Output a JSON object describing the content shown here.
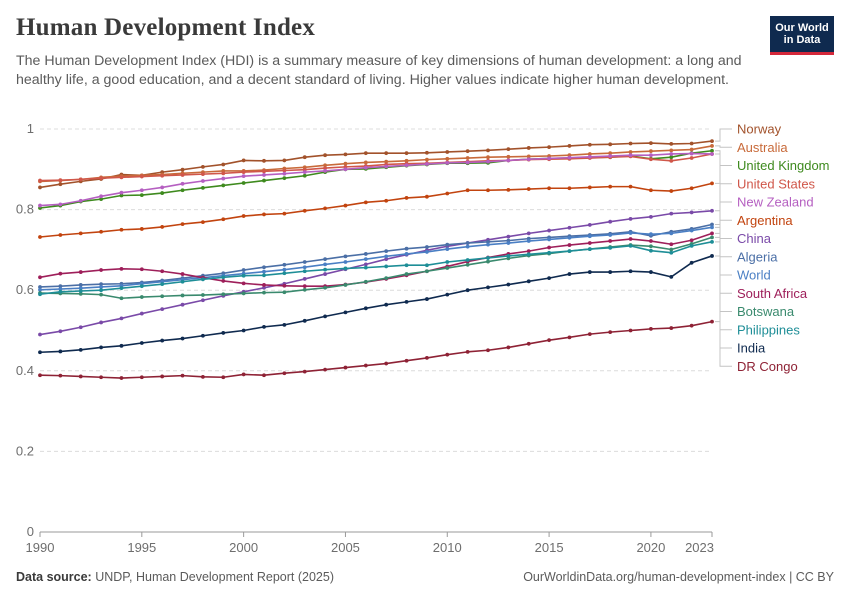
{
  "header": {
    "title": "Human Development Index",
    "subtitle": "The Human Development Index (HDI) is a summary measure of key dimensions of human development: a long and healthy life, a good education, and a decent standard of living. Higher values indicate higher human development."
  },
  "logo": {
    "line1": "Our World",
    "line2": "in Data",
    "bg_color": "#0f2a4f",
    "accent_color": "#d4283a"
  },
  "footer": {
    "source_label": "Data source:",
    "source_text": " UNDP, Human Development Report (2025)",
    "url_license": "OurWorldinData.org/human-development-index | CC BY"
  },
  "chart_data": {
    "type": "line",
    "title": "Human Development Index",
    "x_ticks": [
      "1990",
      "1995",
      "2000",
      "2005",
      "2010",
      "2015",
      "2020",
      "2023"
    ],
    "y_ticks": [
      "0",
      "0.2",
      "0.4",
      "0.6",
      "0.8",
      "1"
    ],
    "xlim": [
      1990,
      2023
    ],
    "ylim": [
      0,
      1
    ],
    "grid": true,
    "legend": "right",
    "x": [
      1990,
      1991,
      1992,
      1993,
      1994,
      1995,
      1996,
      1997,
      1998,
      1999,
      2000,
      2001,
      2002,
      2003,
      2004,
      2005,
      2006,
      2007,
      2008,
      2009,
      2010,
      2011,
      2012,
      2013,
      2014,
      2015,
      2016,
      2017,
      2018,
      2019,
      2020,
      2021,
      2022,
      2023
    ],
    "series": [
      {
        "name": "Norway",
        "color": "#a2522b",
        "values": [
          0.855,
          0.863,
          0.87,
          0.876,
          0.887,
          0.885,
          0.893,
          0.899,
          0.906,
          0.912,
          0.922,
          0.921,
          0.922,
          0.93,
          0.935,
          0.937,
          0.94,
          0.94,
          0.94,
          0.941,
          0.943,
          0.945,
          0.947,
          0.95,
          0.953,
          0.955,
          0.958,
          0.961,
          0.962,
          0.964,
          0.965,
          0.963,
          0.964,
          0.97
        ]
      },
      {
        "name": "Australia",
        "color": "#c86a3a",
        "values": [
          0.87,
          0.872,
          0.875,
          0.88,
          0.883,
          0.885,
          0.887,
          0.89,
          0.893,
          0.896,
          0.896,
          0.898,
          0.902,
          0.905,
          0.91,
          0.914,
          0.917,
          0.919,
          0.921,
          0.924,
          0.926,
          0.928,
          0.93,
          0.931,
          0.932,
          0.933,
          0.935,
          0.938,
          0.94,
          0.943,
          0.945,
          0.947,
          0.949,
          0.958
        ]
      },
      {
        "name": "United Kingdom",
        "color": "#3e8a1e",
        "values": [
          0.804,
          0.81,
          0.82,
          0.826,
          0.835,
          0.836,
          0.841,
          0.848,
          0.854,
          0.86,
          0.866,
          0.872,
          0.878,
          0.884,
          0.893,
          0.9,
          0.901,
          0.905,
          0.909,
          0.912,
          0.915,
          0.915,
          0.916,
          0.922,
          0.925,
          0.927,
          0.928,
          0.929,
          0.93,
          0.933,
          0.926,
          0.93,
          0.94,
          0.946
        ]
      },
      {
        "name": "United States",
        "color": "#d0574a",
        "values": [
          0.872,
          0.873,
          0.875,
          0.878,
          0.88,
          0.882,
          0.884,
          0.886,
          0.888,
          0.89,
          0.893,
          0.895,
          0.897,
          0.899,
          0.903,
          0.906,
          0.908,
          0.912,
          0.914,
          0.915,
          0.917,
          0.919,
          0.921,
          0.922,
          0.924,
          0.925,
          0.926,
          0.928,
          0.93,
          0.932,
          0.925,
          0.921,
          0.928,
          0.938
        ]
      },
      {
        "name": "New Zealand",
        "color": "#b55fc1",
        "values": [
          0.81,
          0.813,
          0.822,
          0.833,
          0.842,
          0.848,
          0.855,
          0.864,
          0.871,
          0.877,
          0.883,
          0.886,
          0.889,
          0.893,
          0.896,
          0.9,
          0.904,
          0.907,
          0.91,
          0.913,
          0.916,
          0.917,
          0.919,
          0.922,
          0.925,
          0.927,
          0.929,
          0.931,
          0.933,
          0.935,
          0.935,
          0.938,
          0.939,
          0.938
        ]
      },
      {
        "name": "Argentina",
        "color": "#c2440f",
        "values": [
          0.732,
          0.737,
          0.741,
          0.745,
          0.75,
          0.752,
          0.757,
          0.764,
          0.769,
          0.776,
          0.784,
          0.788,
          0.79,
          0.797,
          0.803,
          0.81,
          0.818,
          0.822,
          0.829,
          0.832,
          0.84,
          0.848,
          0.848,
          0.849,
          0.851,
          0.853,
          0.853,
          0.855,
          0.857,
          0.857,
          0.848,
          0.846,
          0.853,
          0.865
        ]
      },
      {
        "name": "China",
        "color": "#7a4aa8",
        "values": [
          0.49,
          0.498,
          0.508,
          0.52,
          0.53,
          0.542,
          0.553,
          0.564,
          0.575,
          0.586,
          0.596,
          0.606,
          0.616,
          0.628,
          0.64,
          0.652,
          0.664,
          0.677,
          0.688,
          0.699,
          0.709,
          0.717,
          0.725,
          0.733,
          0.741,
          0.748,
          0.755,
          0.762,
          0.77,
          0.777,
          0.782,
          0.79,
          0.793,
          0.797
        ]
      },
      {
        "name": "Algeria",
        "color": "#4b6fa6",
        "values": [
          0.608,
          0.61,
          0.613,
          0.615,
          0.616,
          0.619,
          0.624,
          0.63,
          0.636,
          0.642,
          0.65,
          0.657,
          0.663,
          0.67,
          0.677,
          0.684,
          0.69,
          0.697,
          0.703,
          0.707,
          0.713,
          0.717,
          0.72,
          0.723,
          0.728,
          0.731,
          0.734,
          0.737,
          0.74,
          0.745,
          0.735,
          0.745,
          0.752,
          0.763
        ]
      },
      {
        "name": "World",
        "color": "#4a7fc4",
        "values": [
          0.601,
          0.603,
          0.605,
          0.608,
          0.611,
          0.616,
          0.621,
          0.626,
          0.631,
          0.636,
          0.641,
          0.646,
          0.651,
          0.657,
          0.664,
          0.67,
          0.677,
          0.684,
          0.69,
          0.695,
          0.702,
          0.708,
          0.713,
          0.717,
          0.722,
          0.726,
          0.73,
          0.734,
          0.737,
          0.742,
          0.739,
          0.741,
          0.748,
          0.756
        ]
      },
      {
        "name": "South Africa",
        "color": "#9e1f5a",
        "values": [
          0.632,
          0.641,
          0.645,
          0.65,
          0.653,
          0.652,
          0.647,
          0.64,
          0.631,
          0.623,
          0.617,
          0.613,
          0.611,
          0.61,
          0.61,
          0.614,
          0.62,
          0.628,
          0.637,
          0.647,
          0.659,
          0.671,
          0.681,
          0.69,
          0.697,
          0.706,
          0.712,
          0.717,
          0.722,
          0.727,
          0.722,
          0.714,
          0.724,
          0.741
        ]
      },
      {
        "name": "Botswana",
        "color": "#3a8a6e",
        "values": [
          0.593,
          0.592,
          0.591,
          0.589,
          0.58,
          0.583,
          0.585,
          0.587,
          0.588,
          0.59,
          0.592,
          0.594,
          0.595,
          0.601,
          0.606,
          0.613,
          0.621,
          0.63,
          0.64,
          0.647,
          0.655,
          0.663,
          0.671,
          0.679,
          0.686,
          0.691,
          0.697,
          0.702,
          0.707,
          0.712,
          0.709,
          0.701,
          0.715,
          0.731
        ]
      },
      {
        "name": "Philippines",
        "color": "#1e8e97",
        "values": [
          0.59,
          0.596,
          0.598,
          0.6,
          0.605,
          0.61,
          0.615,
          0.621,
          0.627,
          0.632,
          0.636,
          0.637,
          0.642,
          0.647,
          0.651,
          0.654,
          0.656,
          0.659,
          0.662,
          0.662,
          0.67,
          0.675,
          0.68,
          0.685,
          0.689,
          0.693,
          0.697,
          0.702,
          0.705,
          0.71,
          0.698,
          0.693,
          0.71,
          0.72
        ]
      },
      {
        "name": "India",
        "color": "#0f2a4f",
        "values": [
          0.446,
          0.448,
          0.452,
          0.458,
          0.462,
          0.469,
          0.475,
          0.48,
          0.487,
          0.494,
          0.5,
          0.509,
          0.514,
          0.524,
          0.535,
          0.545,
          0.555,
          0.564,
          0.571,
          0.578,
          0.589,
          0.6,
          0.607,
          0.614,
          0.622,
          0.63,
          0.64,
          0.645,
          0.645,
          0.647,
          0.645,
          0.633,
          0.668,
          0.685
        ]
      },
      {
        "name": "DR Congo",
        "color": "#8e2235",
        "values": [
          0.389,
          0.388,
          0.386,
          0.384,
          0.382,
          0.384,
          0.386,
          0.388,
          0.385,
          0.384,
          0.391,
          0.389,
          0.394,
          0.398,
          0.403,
          0.408,
          0.413,
          0.418,
          0.425,
          0.432,
          0.44,
          0.447,
          0.451,
          0.458,
          0.467,
          0.476,
          0.483,
          0.491,
          0.496,
          0.5,
          0.504,
          0.506,
          0.512,
          0.522
        ]
      }
    ]
  }
}
